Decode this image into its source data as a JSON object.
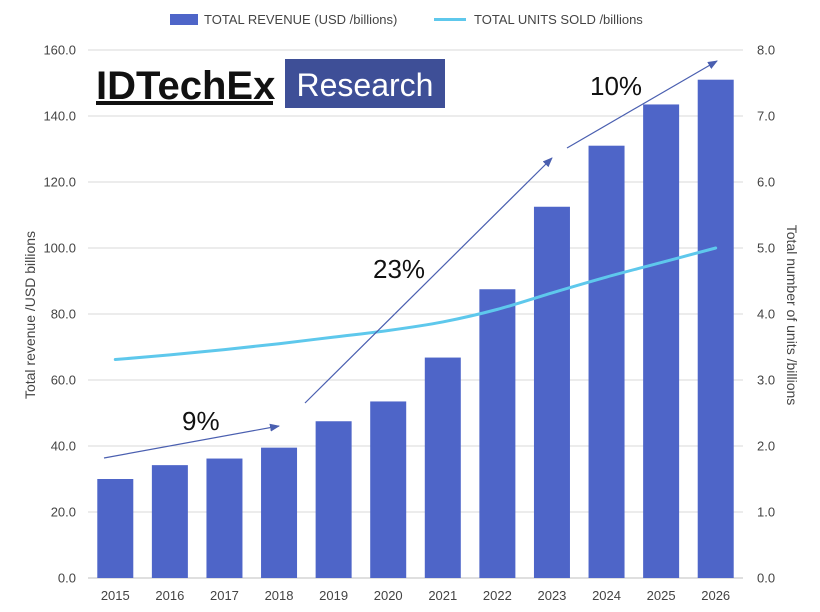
{
  "chart_data": {
    "type": "bar",
    "categories": [
      "2015",
      "2016",
      "2017",
      "2018",
      "2019",
      "2020",
      "2021",
      "2022",
      "2023",
      "2024",
      "2025",
      "2026"
    ],
    "series": [
      {
        "name": "TOTAL REVENUE (USD /billions)",
        "kind": "bar",
        "axis": "left",
        "color": "#4e65c8",
        "values": [
          30.0,
          34.2,
          36.2,
          39.5,
          47.5,
          53.5,
          66.8,
          87.5,
          112.5,
          131.0,
          143.5,
          151.0
        ]
      },
      {
        "name": "TOTAL UNITS SOLD /billions",
        "kind": "line",
        "axis": "right",
        "color": "#5ec8ec",
        "values": [
          3.31,
          3.38,
          3.46,
          3.55,
          3.65,
          3.75,
          3.88,
          4.07,
          4.32,
          4.56,
          4.78,
          5.0
        ]
      }
    ],
    "ylabel": "Total revenue /USD billions",
    "y2label": "Total number of units /billions",
    "ylim": [
      0,
      160
    ],
    "y2lim": [
      0,
      8
    ],
    "yticks": [
      "0.0",
      "20.0",
      "40.0",
      "60.0",
      "80.0",
      "100.0",
      "120.0",
      "140.0",
      "160.0"
    ],
    "y2ticks": [
      "0.0",
      "1.0",
      "2.0",
      "3.0",
      "4.0",
      "5.0",
      "6.0",
      "7.0",
      "8.0"
    ],
    "grid": true,
    "legend_position": "top-center",
    "annotations": [
      {
        "text": "9%",
        "from_category": "2015",
        "to_category": "2018"
      },
      {
        "text": "23%",
        "from_category": "2019",
        "to_category": "2023"
      },
      {
        "text": "10%",
        "from_category": "2023",
        "to_category": "2026"
      }
    ]
  },
  "logo": {
    "main": "IDTechEx",
    "box": "Research",
    "box_color": "#3e4f97"
  },
  "colors": {
    "grid": "#d9d9d9",
    "arrow": "#4a5fb0",
    "text": "#444444"
  }
}
